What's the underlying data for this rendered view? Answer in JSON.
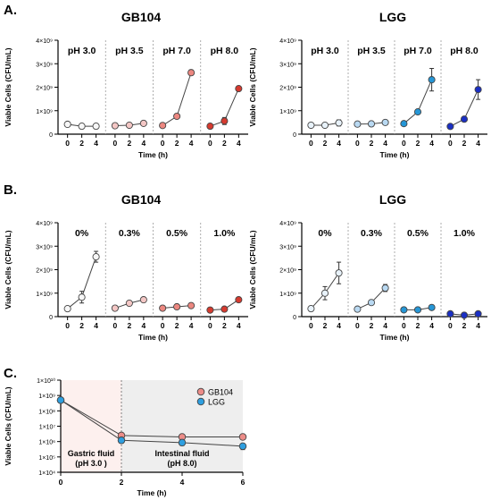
{
  "panels": [
    {
      "id": "A",
      "label": "A.",
      "chart_keys": [
        0,
        1
      ]
    },
    {
      "id": "B",
      "label": "B.",
      "chart_keys": [
        2,
        3
      ]
    },
    {
      "id": "C",
      "label": "C.",
      "chart_keys": [
        4
      ]
    }
  ],
  "chart_data": [
    {
      "type": "line",
      "panel": "A",
      "title": "GB104",
      "ylabel": "Viable Cells (CFU/mL)",
      "xlabel": "Time (h)",
      "ylim": [
        0,
        4000000000
      ],
      "yticks": [
        {
          "value": 0,
          "label": "0"
        },
        {
          "value": 1000000000,
          "label": "1×10⁹"
        },
        {
          "value": 2000000000,
          "label": "2×10⁹"
        },
        {
          "value": 3000000000,
          "label": "3×10⁹"
        },
        {
          "value": 4000000000,
          "label": "4×10⁹"
        }
      ],
      "xticks": [
        "0",
        "2",
        "4"
      ],
      "x": [
        0,
        2,
        4
      ],
      "groups": [
        {
          "name": "pH 3.0",
          "color": "#f7f7f7",
          "y": [
            420000000,
            340000000,
            340000000
          ],
          "err": [
            0,
            0,
            0
          ]
        },
        {
          "name": "pH 3.5",
          "color": "#f4c7c5",
          "y": [
            360000000,
            380000000,
            460000000
          ],
          "err": [
            0,
            0,
            0
          ]
        },
        {
          "name": "pH 7.0",
          "color": "#ec8780",
          "y": [
            370000000,
            760000000,
            2620000000
          ],
          "err": [
            0,
            0,
            110000000
          ]
        },
        {
          "name": "pH 8.0",
          "color": "#d63a2f",
          "y": [
            340000000,
            560000000,
            1940000000
          ],
          "err": [
            0,
            150000000,
            0
          ]
        }
      ]
    },
    {
      "type": "line",
      "panel": "A",
      "title": "LGG",
      "ylabel": "Viable Cells (CFU/mL)",
      "xlabel": "Time (h)",
      "ylim": [
        0,
        4000000000
      ],
      "yticks": [
        {
          "value": 0,
          "label": "0"
        },
        {
          "value": 1000000000,
          "label": "1×10⁹"
        },
        {
          "value": 2000000000,
          "label": "2×10⁹"
        },
        {
          "value": 3000000000,
          "label": "3×10⁹"
        },
        {
          "value": 4000000000,
          "label": "4×10⁹"
        }
      ],
      "xticks": [
        "0",
        "2",
        "4"
      ],
      "x": [
        0,
        2,
        4
      ],
      "groups": [
        {
          "name": "pH 3.0",
          "color": "#e8f2fa",
          "y": [
            380000000,
            380000000,
            480000000
          ],
          "err": [
            0,
            0,
            130000000
          ]
        },
        {
          "name": "pH 3.5",
          "color": "#b9d9f2",
          "y": [
            430000000,
            440000000,
            500000000
          ],
          "err": [
            0,
            0,
            0
          ]
        },
        {
          "name": "pH 7.0",
          "color": "#2596d6",
          "y": [
            450000000,
            950000000,
            2320000000
          ],
          "err": [
            0,
            0,
            480000000
          ]
        },
        {
          "name": "pH 8.0",
          "color": "#1a2fc4",
          "y": [
            330000000,
            640000000,
            1900000000
          ],
          "err": [
            0,
            0,
            420000000
          ]
        }
      ]
    },
    {
      "type": "line",
      "panel": "B",
      "title": "GB104",
      "ylabel": "Viable Cells (CFU/mL)",
      "xlabel": "Time (h)",
      "ylim": [
        0,
        4000000000
      ],
      "yticks": [
        {
          "value": 0,
          "label": "0"
        },
        {
          "value": 1000000000,
          "label": "1×10⁹"
        },
        {
          "value": 2000000000,
          "label": "2×10⁹"
        },
        {
          "value": 3000000000,
          "label": "3×10⁹"
        },
        {
          "value": 4000000000,
          "label": "4×10⁹"
        }
      ],
      "xticks": [
        "0",
        "2",
        "4"
      ],
      "x": [
        0,
        2,
        4
      ],
      "groups": [
        {
          "name": "0%",
          "color": "#f7f7f7",
          "y": [
            340000000,
            830000000,
            2550000000
          ],
          "err": [
            0,
            250000000,
            230000000
          ]
        },
        {
          "name": "0.3%",
          "color": "#f4c7c5",
          "y": [
            360000000,
            570000000,
            720000000
          ],
          "err": [
            0,
            100000000,
            0
          ]
        },
        {
          "name": "0.5%",
          "color": "#ec8780",
          "y": [
            360000000,
            420000000,
            470000000
          ],
          "err": [
            0,
            0,
            0
          ]
        },
        {
          "name": "1.0%",
          "color": "#d63a2f",
          "y": [
            280000000,
            320000000,
            720000000
          ],
          "err": [
            0,
            0,
            0
          ]
        }
      ]
    },
    {
      "type": "line",
      "panel": "B",
      "title": "LGG",
      "ylabel": "Viable Cells (CFU/mL)",
      "xlabel": "Time (h)",
      "ylim": [
        0,
        4000000000
      ],
      "yticks": [
        {
          "value": 0,
          "label": "0"
        },
        {
          "value": 1000000000,
          "label": "1×10⁹"
        },
        {
          "value": 2000000000,
          "label": "2×10⁹"
        },
        {
          "value": 3000000000,
          "label": "3×10⁹"
        },
        {
          "value": 4000000000,
          "label": "4×10⁹"
        }
      ],
      "xticks": [
        "0",
        "2",
        "4"
      ],
      "x": [
        0,
        2,
        4
      ],
      "groups": [
        {
          "name": "0%",
          "color": "#e8f2fa",
          "y": [
            340000000,
            1000000000,
            1860000000
          ],
          "err": [
            0,
            280000000,
            460000000
          ]
        },
        {
          "name": "0.3%",
          "color": "#b9d9f2",
          "y": [
            320000000,
            600000000,
            1220000000
          ],
          "err": [
            0,
            0,
            150000000
          ]
        },
        {
          "name": "0.5%",
          "color": "#2596d6",
          "y": [
            290000000,
            290000000,
            390000000
          ],
          "err": [
            0,
            0,
            0
          ]
        },
        {
          "name": "1.0%",
          "color": "#1a2fc4",
          "y": [
            120000000,
            60000000,
            120000000
          ],
          "err": [
            0,
            0,
            0
          ]
        }
      ]
    },
    {
      "type": "line",
      "panel": "C",
      "title": "",
      "ylabel": "Viable Cells (CFU/mL)",
      "xlabel": "Time (h)",
      "yscale": "log",
      "ylim": [
        10000,
        10000000000
      ],
      "yticks": [
        {
          "value": 10000,
          "label": "1×10⁴"
        },
        {
          "value": 100000,
          "label": "1×10⁵"
        },
        {
          "value": 1000000,
          "label": "1×10⁶"
        },
        {
          "value": 10000000,
          "label": "1×10⁷"
        },
        {
          "value": 100000000,
          "label": "1×10⁸"
        },
        {
          "value": 1000000000,
          "label": "1×10⁹"
        },
        {
          "value": 10000000000,
          "label": "1×10¹⁰"
        }
      ],
      "xlim": [
        0,
        6
      ],
      "xticks": [
        "0",
        "2",
        "4",
        "6"
      ],
      "regions": [
        {
          "name": "Gastric fluid",
          "detail": "(pH 3.0 )",
          "from": 0,
          "to": 2,
          "color": "#fdf0ee"
        },
        {
          "name": "Intestinal fluid",
          "detail": "(pH 8.0)",
          "from": 2,
          "to": 6,
          "color": "#eeeeee"
        }
      ],
      "legend_position": "top-right",
      "x": [
        0,
        2,
        4,
        6
      ],
      "series": [
        {
          "name": "GB104",
          "color": "#ec8c88",
          "values": [
            500000000,
            2500000,
            2000000,
            2000000
          ],
          "err": [
            0,
            0,
            0,
            0
          ]
        },
        {
          "name": "LGG",
          "color": "#2e9fe0",
          "values": [
            500000000,
            1200000,
            850000,
            500000
          ],
          "err": [
            0,
            400000,
            300000,
            200000
          ]
        }
      ]
    }
  ]
}
